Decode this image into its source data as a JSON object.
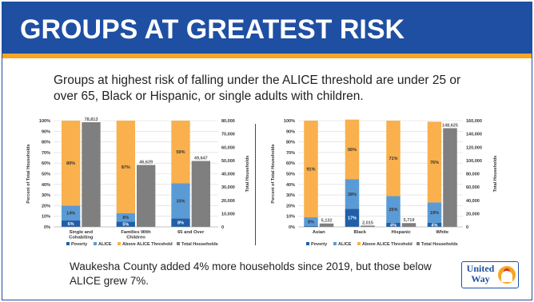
{
  "header": {
    "title": "GROUPS AT GREATEST RISK"
  },
  "intro": {
    "text": "Groups at highest risk of falling under the ALICE threshold are under 25 or over 65, Black or Hispanic, or single adults with children."
  },
  "footer": {
    "text": "Waukesha County added 4% more households since 2019, but those below ALICE grew 7%."
  },
  "logo": {
    "text": "United\nWay",
    "icon": "united-way-hand-icon"
  },
  "colors": {
    "header": "#1f4fa3",
    "stripe": "#f5a623",
    "poverty": "#1f5fa8",
    "alice": "#5b9bd5",
    "above": "#f9b04d",
    "total": "#7f7f7f"
  },
  "chart_data": [
    {
      "type": "bar",
      "categories": [
        "Single and Cohabiting",
        "Families With Children",
        "65 and Over"
      ],
      "series": [
        {
          "name": "Poverty",
          "values": [
            6,
            5,
            8
          ],
          "stacked": true
        },
        {
          "name": "ALICE",
          "values": [
            14,
            8,
            33
          ],
          "stacked": true
        },
        {
          "name": "Above ALICE Threshold",
          "values": [
            80,
            87,
            59
          ],
          "stacked": true
        },
        {
          "name": "Total Households",
          "values": [
            78813,
            46629,
            49647
          ],
          "axis": "right"
        }
      ],
      "value_labels": {
        "Poverty": [
          "6%",
          "5%",
          "8%"
        ],
        "ALICE": [
          "14%",
          "8%",
          "33%"
        ],
        "Above ALICE Threshold": [
          "80%",
          "87%",
          "59%"
        ],
        "Total Households": [
          "78,813",
          "46,629",
          "49,647"
        ]
      },
      "ylabel": "Percent of Total Households",
      "y2label": "Total Households",
      "ylim": [
        0,
        100
      ],
      "y2lim": [
        0,
        80000
      ],
      "yticks": [
        "0%",
        "10%",
        "20%",
        "30%",
        "40%",
        "50%",
        "60%",
        "70%",
        "80%",
        "90%",
        "100%"
      ],
      "y2ticks": [
        "0",
        "10,000",
        "20,000",
        "30,000",
        "40,000",
        "50,000",
        "60,000",
        "70,000",
        "80,000"
      ],
      "legend": [
        "Poverty",
        "ALICE",
        "Above ALICE Threshold",
        "Total Households"
      ],
      "legend_position": "bottom"
    },
    {
      "type": "bar",
      "categories": [
        "Asian",
        "Black",
        "Hispanic",
        "White"
      ],
      "series": [
        {
          "name": "Poverty",
          "values": [
            1,
            17,
            4,
            4
          ],
          "stacked": true
        },
        {
          "name": "ALICE",
          "values": [
            8,
            28,
            25,
            19
          ],
          "stacked": true
        },
        {
          "name": "Above ALICE Threshold",
          "values": [
            91,
            56,
            71,
            76
          ],
          "stacked": true
        },
        {
          "name": "Total Households",
          "values": [
            5132,
            2015,
            5719,
            148625
          ],
          "axis": "right"
        }
      ],
      "value_labels": {
        "Poverty": [
          "",
          "17%",
          "4%",
          "4%"
        ],
        "ALICE": [
          "8%",
          "28%",
          "25%",
          "19%"
        ],
        "Above ALICE Threshold": [
          "91%",
          "56%",
          "71%",
          "76%"
        ],
        "Total Households": [
          "5,132",
          "2,015",
          "5,719",
          "148,625"
        ]
      },
      "ylabel": "Percent of Total Households",
      "y2label": "Total Households",
      "ylim": [
        0,
        100
      ],
      "y2lim": [
        0,
        160000
      ],
      "yticks": [
        "0%",
        "10%",
        "20%",
        "30%",
        "40%",
        "50%",
        "60%",
        "70%",
        "80%",
        "90%",
        "100%"
      ],
      "y2ticks": [
        "0",
        "20,000",
        "40,000",
        "60,000",
        "80,000",
        "100,000",
        "120,000",
        "140,000",
        "160,000"
      ],
      "legend": [
        "Poverty",
        "ALICE",
        "Above ALICE Threshold",
        "Total Households"
      ],
      "legend_position": "bottom"
    }
  ]
}
